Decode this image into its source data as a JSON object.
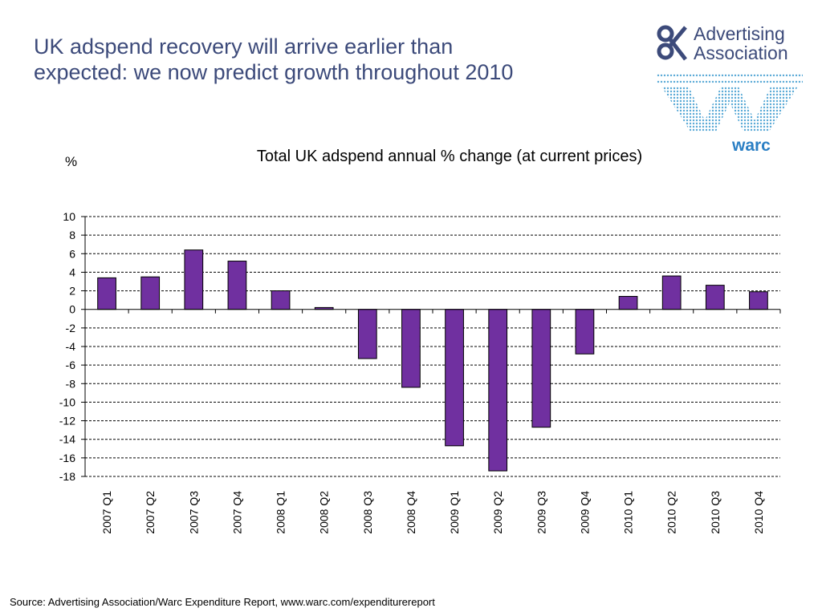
{
  "slide": {
    "title": "UK adspend recovery will arrive earlier than expected: we now predict growth throughout 2010",
    "source": "Source: Advertising Association/Warc Expenditure Report, www.warc.com/expenditurereport"
  },
  "logos": {
    "advertising_association": {
      "line1": "Advertising",
      "line2": "Association",
      "color": "#3c4a7a"
    },
    "warc": {
      "word": "warc",
      "color": "#2b7fc4"
    }
  },
  "chart_data": {
    "type": "bar",
    "title": "Total UK adspend annual % change (at current prices)",
    "ylabel": "%",
    "xlabel": "",
    "categories": [
      "2007 Q1",
      "2007 Q2",
      "2007 Q3",
      "2007 Q4",
      "2008 Q1",
      "2008 Q2",
      "2008 Q3",
      "2008 Q4",
      "2009 Q1",
      "2009 Q2",
      "2009 Q3",
      "2009 Q4",
      "2010 Q1",
      "2010 Q2",
      "2010 Q3",
      "2010 Q4"
    ],
    "values": [
      3.4,
      3.5,
      6.4,
      5.2,
      2.0,
      0.2,
      -5.3,
      -8.4,
      -14.7,
      -17.4,
      -12.7,
      -4.8,
      1.4,
      3.6,
      2.6,
      1.9
    ],
    "ylim": [
      -18,
      10
    ],
    "yticks": [
      10,
      8,
      6,
      4,
      2,
      0,
      -2,
      -4,
      -6,
      -8,
      -10,
      -12,
      -14,
      -16,
      -18
    ],
    "grid": true,
    "bar_color": "#7030a0"
  }
}
